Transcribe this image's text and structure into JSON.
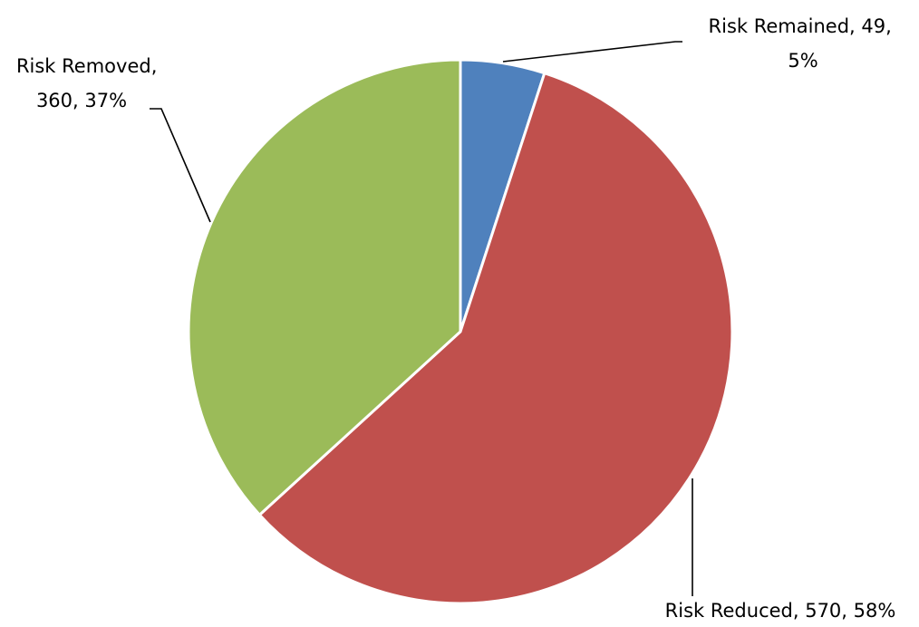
{
  "chart_data": {
    "type": "pie",
    "title": "",
    "categories": [
      "Risk Remained",
      "Risk Reduced",
      "Risk Removed"
    ],
    "values": [
      49,
      570,
      360
    ],
    "percentages": [
      5,
      58,
      37
    ],
    "colors": [
      "#4f81bd",
      "#c0504d",
      "#9bbb59"
    ],
    "start_angle_deg": 0,
    "direction": "clockwise",
    "legend": "none",
    "labels": [
      {
        "lines": [
          "Risk Remained, 49,",
          "5%"
        ]
      },
      {
        "lines": [
          "Risk Reduced, 570, 58%"
        ]
      },
      {
        "lines": [
          "Risk Removed,",
          "360, 37%"
        ]
      }
    ]
  }
}
